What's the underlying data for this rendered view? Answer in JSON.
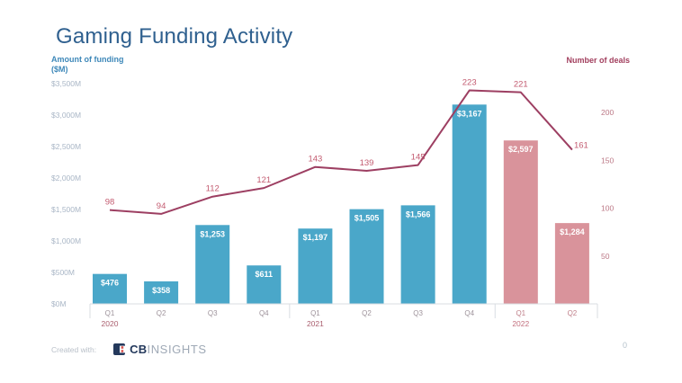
{
  "page": {
    "title": "Gaming Funding Activity",
    "footer": {
      "created_with": "Created with:",
      "brand_bold": "CB",
      "brand_light": "INSIGHTS"
    },
    "page_number": "0"
  },
  "left_axis": {
    "header_line1": "Amount of funding",
    "header_line2": "($M)",
    "header_color": "#3e88b9",
    "tick_color": "#a9b6c6"
  },
  "right_axis": {
    "header": "Number of deals",
    "header_color": "#a23f5e",
    "tick_color": "#bc7886"
  },
  "chart_data": {
    "type": "bar",
    "title": "Gaming Funding Activity",
    "categories": [
      "Q1",
      "Q2",
      "Q3",
      "Q4",
      "Q1",
      "Q2",
      "Q3",
      "Q4",
      "Q1",
      "Q2"
    ],
    "year_groups": [
      {
        "label": "2020",
        "first": 0,
        "last": 3,
        "quarter_color": "#9e939b",
        "year_color": "#aa5f6f"
      },
      {
        "label": "2021",
        "first": 4,
        "last": 7,
        "quarter_color": "#9e939b",
        "year_color": "#aa5f6f"
      },
      {
        "label": "2022",
        "first": 8,
        "last": 9,
        "quarter_color": "#c0808a",
        "year_color": "#c3707e"
      }
    ],
    "series": [
      {
        "name": "Amount of funding ($M)",
        "type": "bar",
        "values": [
          476,
          358,
          1253,
          611,
          1197,
          1505,
          1566,
          3167,
          2597,
          1284
        ],
        "labels": [
          "$476",
          "$358",
          "$1,253",
          "$611",
          "$1,197",
          "$1,505",
          "$1,566",
          "$3,167",
          "$2,597",
          "$1,284"
        ],
        "label_color": "#ffffff",
        "colors": [
          "#4aa7c9",
          "#4aa7c9",
          "#4aa7c9",
          "#4aa7c9",
          "#4aa7c9",
          "#4aa7c9",
          "#4aa7c9",
          "#4aa7c9",
          "#d9939b",
          "#d9939b"
        ]
      },
      {
        "name": "Number of deals",
        "type": "line",
        "values": [
          98,
          94,
          112,
          121,
          143,
          139,
          145,
          223,
          221,
          161
        ],
        "labels": [
          "98",
          "94",
          "112",
          "121",
          "143",
          "139",
          "145",
          "223",
          "221",
          "161"
        ],
        "color": "#9d3f62",
        "label_color": "#c35b70"
      }
    ],
    "left_ticks": [
      {
        "label": "$0M",
        "value": 0
      },
      {
        "label": "$500M",
        "value": 500
      },
      {
        "label": "$1,000M",
        "value": 1000
      },
      {
        "label": "$1,500M",
        "value": 1500
      },
      {
        "label": "$2,000M",
        "value": 2000
      },
      {
        "label": "$2,500M",
        "value": 2500
      },
      {
        "label": "$3,000M",
        "value": 3000
      },
      {
        "label": "$3,500M",
        "value": 3500
      }
    ],
    "right_ticks": [
      {
        "label": "50",
        "value": 50
      },
      {
        "label": "100",
        "value": 100
      },
      {
        "label": "150",
        "value": 150
      },
      {
        "label": "200",
        "value": 200
      }
    ],
    "ylim_left": [
      0,
      3500
    ],
    "ylim_right": [
      0,
      213
    ],
    "grid": false,
    "legend": "none",
    "axis_line_color": "#d9dde2"
  }
}
